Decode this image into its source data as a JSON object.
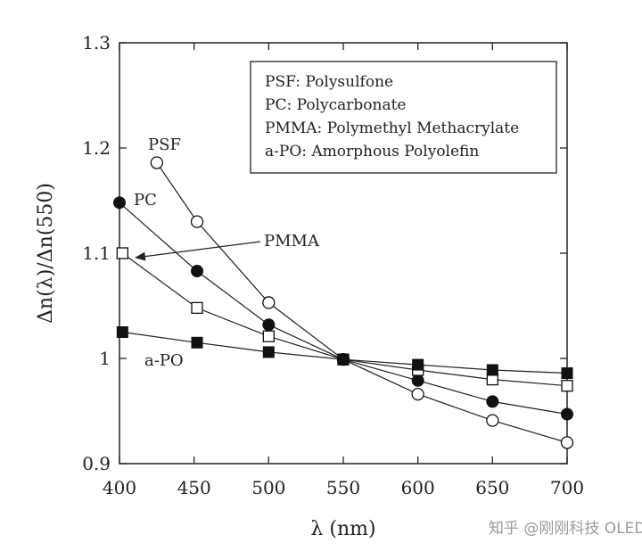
{
  "chart_data": {
    "type": "line",
    "title": "",
    "xlabel": "λ (nm)",
    "ylabel": "Δn(λ)/Δn(550)",
    "xlim": [
      400,
      700
    ],
    "ylim": [
      0.9,
      1.3
    ],
    "xticks": [
      400,
      450,
      500,
      550,
      600,
      650,
      700
    ],
    "yticks": [
      0.9,
      1,
      1.1,
      1.2,
      1.3
    ],
    "ytick_labels": [
      "0.9",
      "1",
      "1.1",
      "1.2",
      "1.3"
    ],
    "grid": false,
    "legend_position": "top-right",
    "legend": [
      "PSF: Polysulfone",
      "PC: Polycarbonate",
      "PMMA: Polymethyl Methacrylate",
      "a-PO: Amorphous Polyolefin"
    ],
    "series": [
      {
        "name": "PSF",
        "marker": "open-circle",
        "x": [
          425,
          452,
          500,
          550,
          600,
          650,
          700
        ],
        "values": [
          1.186,
          1.13,
          1.053,
          0.999,
          0.966,
          0.941,
          0.92
        ]
      },
      {
        "name": "PC",
        "marker": "filled-circle",
        "x": [
          400,
          452,
          500,
          550,
          600,
          650,
          700
        ],
        "values": [
          1.148,
          1.083,
          1.032,
          0.999,
          0.979,
          0.959,
          0.947
        ]
      },
      {
        "name": "PMMA",
        "marker": "open-square",
        "x": [
          402,
          452,
          500,
          550,
          600,
          650,
          700
        ],
        "values": [
          1.1,
          1.048,
          1.021,
          0.999,
          0.989,
          0.98,
          0.974
        ]
      },
      {
        "name": "a-PO",
        "marker": "filled-square",
        "x": [
          402,
          452,
          500,
          550,
          600,
          650,
          700
        ],
        "values": [
          1.025,
          1.015,
          1.006,
          0.999,
          0.994,
          0.989,
          0.986
        ]
      }
    ],
    "annotations": [
      {
        "text": "PSF",
        "series": "PSF"
      },
      {
        "text": "PC",
        "series": "PC"
      },
      {
        "text": "PMMA",
        "series": "PMMA",
        "arrow": true
      },
      {
        "text": "a-PO",
        "series": "a-PO"
      }
    ]
  },
  "watermark": "知乎 @刚刚科技 OLEDindustry",
  "colors": {
    "ink": "#222222",
    "marker_edge": "#111111",
    "background": "#ffffff",
    "watermark": "#9a9a9a"
  }
}
